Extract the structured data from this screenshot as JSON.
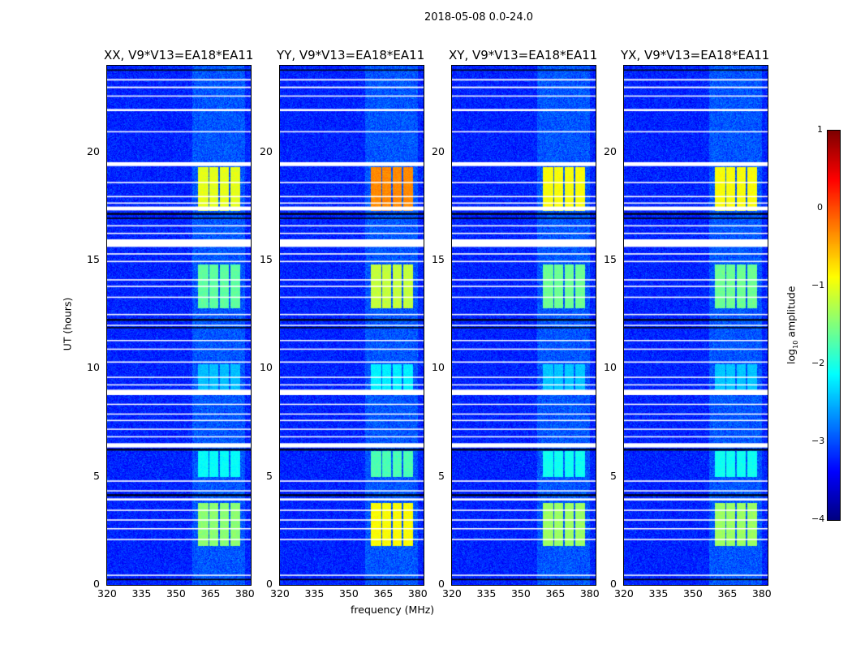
{
  "chart_data": {
    "type": "heatmap",
    "suptitle": "2018-05-08 0.0-24.0",
    "xlabel": "frequency (MHz)",
    "ylabel": "UT (hours)",
    "xlim": [
      320,
      382.5
    ],
    "ylim": [
      0,
      24
    ],
    "xticks": [
      "320",
      "335",
      "350",
      "365",
      "380"
    ],
    "xtick_values": [
      320,
      335,
      350,
      365,
      380
    ],
    "yticks": [
      "0",
      "5",
      "10",
      "15",
      "20"
    ],
    "ytick_values": [
      0,
      5,
      10,
      15,
      20
    ],
    "colormap": "jet",
    "colorbar": {
      "label": "log10 amplitude",
      "label_main": "log",
      "label_sub": "10",
      "label_rest": " amplitude",
      "range": [
        -4,
        1
      ],
      "ticks": [
        "1",
        "0",
        "−1",
        "−2",
        "−3",
        "−4"
      ],
      "tick_values": [
        1,
        0,
        -1,
        -2,
        -3,
        -4
      ]
    },
    "panels": [
      {
        "title": "XX, V9*V13=EA18*EA11",
        "peak_level": -1.0
      },
      {
        "title": "YY, V9*V13=EA18*EA11",
        "peak_level": -0.3
      },
      {
        "title": "XY, V9*V13=EA18*EA11",
        "peak_level": -0.9
      },
      {
        "title": "YX, V9*V13=EA18*EA11",
        "peak_level": -0.9
      }
    ],
    "background_level": -3.2,
    "bright_subbands_mhz": [
      [
        359.5,
        364
      ],
      [
        364.5,
        368.5
      ],
      [
        369,
        373
      ],
      [
        373.5,
        378
      ]
    ],
    "bright_time_ranges_h": [
      [
        17.3,
        19.3,
        1.0
      ],
      [
        12.8,
        14.8,
        0.7
      ],
      [
        8.8,
        10.2,
        0.35
      ],
      [
        5.0,
        6.2,
        0.5
      ],
      [
        1.8,
        3.8,
        0.8
      ]
    ],
    "flagged_white_h": [
      [
        23.35,
        0.07
      ],
      [
        23.0,
        0.07
      ],
      [
        22.6,
        0.05
      ],
      [
        21.95,
        0.1
      ],
      [
        20.95,
        0.05
      ],
      [
        19.45,
        0.18
      ],
      [
        18.6,
        0.06
      ],
      [
        17.95,
        0.06
      ],
      [
        17.65,
        0.06
      ],
      [
        17.4,
        0.18
      ],
      [
        16.6,
        0.06
      ],
      [
        16.25,
        0.06
      ],
      [
        15.8,
        0.35
      ],
      [
        15.3,
        0.06
      ],
      [
        14.95,
        0.06
      ],
      [
        14.1,
        0.06
      ],
      [
        13.8,
        0.06
      ],
      [
        13.3,
        0.05
      ],
      [
        12.5,
        0.06
      ],
      [
        12.0,
        0.05
      ],
      [
        11.3,
        0.05
      ],
      [
        10.9,
        0.05
      ],
      [
        10.3,
        0.06
      ],
      [
        9.6,
        0.05
      ],
      [
        9.25,
        0.05
      ],
      [
        8.9,
        0.25
      ],
      [
        8.35,
        0.05
      ],
      [
        7.9,
        0.05
      ],
      [
        7.6,
        0.06
      ],
      [
        7.2,
        0.05
      ],
      [
        6.85,
        0.05
      ],
      [
        6.45,
        0.2
      ],
      [
        4.8,
        0.06
      ],
      [
        4.35,
        0.05
      ],
      [
        3.95,
        0.1
      ],
      [
        3.45,
        0.06
      ],
      [
        3.0,
        0.06
      ],
      [
        2.6,
        0.05
      ],
      [
        2.1,
        0.06
      ],
      [
        0.45,
        0.05
      ]
    ],
    "flagged_black_h": [
      [
        17.15,
        0.08
      ],
      [
        16.95,
        0.05
      ],
      [
        12.25,
        0.08
      ],
      [
        11.9,
        0.04
      ],
      [
        6.25,
        0.08
      ],
      [
        4.15,
        0.08
      ],
      [
        0.25,
        0.06
      ],
      [
        23.8,
        0.05
      ]
    ]
  }
}
